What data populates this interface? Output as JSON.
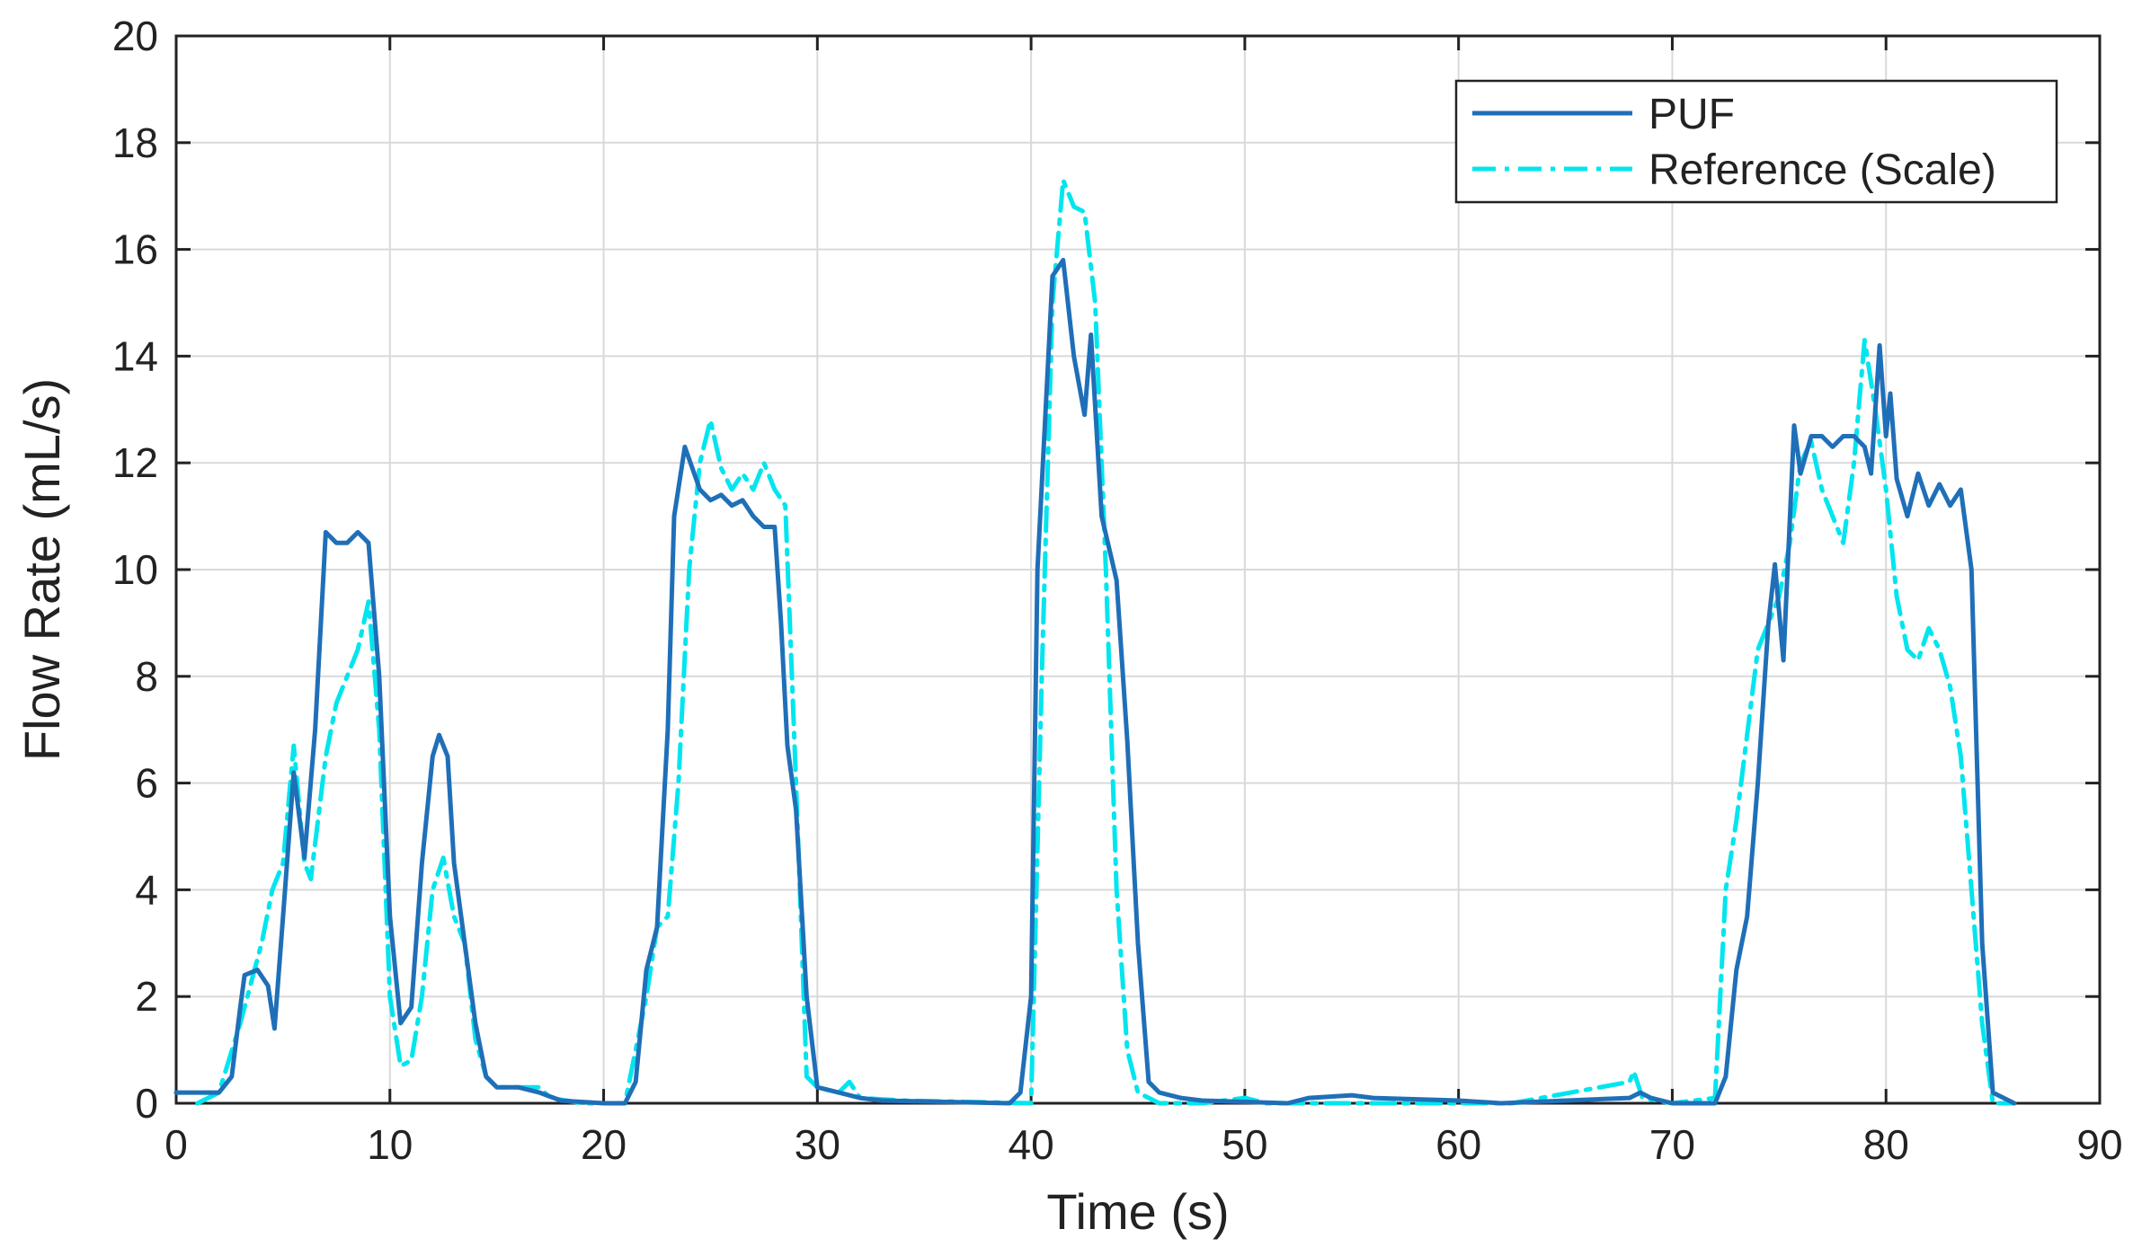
{
  "chart_data": {
    "type": "line",
    "title": "",
    "xlabel": "Time (s)",
    "ylabel": "Flow Rate (mL/s)",
    "xlim": [
      0,
      90
    ],
    "ylim": [
      0,
      20
    ],
    "xticks": [
      0,
      10,
      20,
      30,
      40,
      50,
      60,
      70,
      80,
      90
    ],
    "yticks": [
      0,
      2,
      4,
      6,
      8,
      10,
      12,
      14,
      16,
      18,
      20
    ],
    "xtick_labels": [
      "0",
      "10",
      "20",
      "30",
      "40",
      "50",
      "60",
      "70",
      "80",
      "90"
    ],
    "ytick_labels": [
      "0",
      "2",
      "4",
      "6",
      "8",
      "10",
      "12",
      "14",
      "16",
      "18",
      "20"
    ],
    "grid": true,
    "legend_position": "top-right",
    "series": [
      {
        "name": "PUF",
        "color": "#1f6fb8",
        "dash": "solid",
        "points": [
          [
            0,
            0.2
          ],
          [
            2,
            0.2
          ],
          [
            2.6,
            0.5
          ],
          [
            3,
            1.8
          ],
          [
            3.2,
            2.4
          ],
          [
            3.8,
            2.5
          ],
          [
            4.3,
            2.2
          ],
          [
            4.6,
            1.4
          ],
          [
            5,
            3.5
          ],
          [
            5.5,
            6.2
          ],
          [
            6,
            4.6
          ],
          [
            6.5,
            7
          ],
          [
            7,
            10.7
          ],
          [
            7.5,
            10.5
          ],
          [
            8,
            10.5
          ],
          [
            8.5,
            10.7
          ],
          [
            9,
            10.5
          ],
          [
            9.5,
            8
          ],
          [
            10,
            3.5
          ],
          [
            10.5,
            1.5
          ],
          [
            11,
            1.8
          ],
          [
            11.5,
            4.5
          ],
          [
            12,
            6.5
          ],
          [
            12.3,
            6.9
          ],
          [
            12.7,
            6.5
          ],
          [
            13,
            4.5
          ],
          [
            13.5,
            3
          ],
          [
            14,
            1.5
          ],
          [
            14.5,
            0.5
          ],
          [
            15,
            0.3
          ],
          [
            16,
            0.3
          ],
          [
            17,
            0.2
          ],
          [
            18,
            0.05
          ],
          [
            20,
            0
          ],
          [
            21,
            0
          ],
          [
            21.5,
            0.4
          ],
          [
            22,
            2.5
          ],
          [
            22.5,
            3.3
          ],
          [
            23,
            7
          ],
          [
            23.3,
            11
          ],
          [
            23.8,
            12.3
          ],
          [
            24.5,
            11.5
          ],
          [
            25,
            11.3
          ],
          [
            25.5,
            11.4
          ],
          [
            26,
            11.2
          ],
          [
            26.5,
            11.3
          ],
          [
            27,
            11
          ],
          [
            27.5,
            10.8
          ],
          [
            28,
            10.8
          ],
          [
            28.3,
            9
          ],
          [
            28.6,
            6.7
          ],
          [
            29,
            5.5
          ],
          [
            29.5,
            2
          ],
          [
            30,
            0.3
          ],
          [
            31,
            0.2
          ],
          [
            32,
            0.1
          ],
          [
            33,
            0.05
          ],
          [
            39,
            0
          ],
          [
            39.5,
            0.2
          ],
          [
            40,
            2
          ],
          [
            40.3,
            10
          ],
          [
            41,
            15.5
          ],
          [
            41.5,
            15.8
          ],
          [
            42,
            14
          ],
          [
            42.5,
            12.9
          ],
          [
            42.8,
            14.4
          ],
          [
            43.3,
            11
          ],
          [
            44,
            9.8
          ],
          [
            44.5,
            6.8
          ],
          [
            45,
            3
          ],
          [
            45.5,
            0.4
          ],
          [
            46,
            0.2
          ],
          [
            47,
            0.1
          ],
          [
            48,
            0.05
          ],
          [
            52,
            0
          ],
          [
            53,
            0.1
          ],
          [
            55,
            0.15
          ],
          [
            56,
            0.1
          ],
          [
            60,
            0.05
          ],
          [
            62,
            0
          ],
          [
            68,
            0.1
          ],
          [
            68.5,
            0.2
          ],
          [
            69,
            0.1
          ],
          [
            70,
            0
          ],
          [
            72,
            0
          ],
          [
            72.5,
            0.5
          ],
          [
            73,
            2.5
          ],
          [
            73.5,
            3.5
          ],
          [
            74,
            6
          ],
          [
            74.5,
            9
          ],
          [
            74.8,
            10.1
          ],
          [
            75.2,
            8.3
          ],
          [
            75.7,
            12.7
          ],
          [
            76,
            11.8
          ],
          [
            76.5,
            12.5
          ],
          [
            77,
            12.5
          ],
          [
            77.5,
            12.3
          ],
          [
            78,
            12.5
          ],
          [
            78.5,
            12.5
          ],
          [
            79,
            12.3
          ],
          [
            79.3,
            11.8
          ],
          [
            79.7,
            14.2
          ],
          [
            80,
            12.5
          ],
          [
            80.2,
            13.3
          ],
          [
            80.5,
            11.7
          ],
          [
            81,
            11
          ],
          [
            81.5,
            11.8
          ],
          [
            82,
            11.2
          ],
          [
            82.5,
            11.6
          ],
          [
            83,
            11.2
          ],
          [
            83.5,
            11.5
          ],
          [
            84,
            10
          ],
          [
            84.5,
            3
          ],
          [
            85,
            0.2
          ],
          [
            86,
            0
          ]
        ]
      },
      {
        "name": "Reference (Scale)",
        "color": "#00e5ee",
        "dash": "dashdot",
        "points": [
          [
            1,
            0
          ],
          [
            2,
            0.2
          ],
          [
            3,
            1.5
          ],
          [
            4,
            3
          ],
          [
            4.5,
            4
          ],
          [
            5,
            4.5
          ],
          [
            5.5,
            6.7
          ],
          [
            6,
            4.5
          ],
          [
            6.3,
            4.2
          ],
          [
            7,
            6.5
          ],
          [
            7.5,
            7.5
          ],
          [
            8,
            8
          ],
          [
            8.5,
            8.5
          ],
          [
            9,
            9.4
          ],
          [
            9.5,
            7
          ],
          [
            10,
            2
          ],
          [
            10.5,
            0.7
          ],
          [
            11,
            0.8
          ],
          [
            11.5,
            2
          ],
          [
            12,
            4
          ],
          [
            12.5,
            4.6
          ],
          [
            13,
            3.5
          ],
          [
            13.5,
            3
          ],
          [
            14,
            1.2
          ],
          [
            14.5,
            0.5
          ],
          [
            15,
            0.3
          ],
          [
            16,
            0.3
          ],
          [
            17,
            0.3
          ],
          [
            17.5,
            0.1
          ],
          [
            19,
            0
          ],
          [
            21,
            0
          ],
          [
            22,
            2
          ],
          [
            22.5,
            3.3
          ],
          [
            23,
            3.5
          ],
          [
            23.5,
            6
          ],
          [
            24,
            10
          ],
          [
            24.5,
            12
          ],
          [
            25,
            12.8
          ],
          [
            25.5,
            11.9
          ],
          [
            26,
            11.5
          ],
          [
            26.5,
            11.8
          ],
          [
            27,
            11.5
          ],
          [
            27.5,
            12
          ],
          [
            28,
            11.5
          ],
          [
            28.5,
            11.2
          ],
          [
            29,
            6
          ],
          [
            29.5,
            0.5
          ],
          [
            30,
            0.3
          ],
          [
            31,
            0.2
          ],
          [
            31.5,
            0.4
          ],
          [
            32,
            0.1
          ],
          [
            34,
            0.05
          ],
          [
            40,
            0
          ],
          [
            40.5,
            8
          ],
          [
            41,
            15
          ],
          [
            41.5,
            17.3
          ],
          [
            42,
            16.8
          ],
          [
            42.5,
            16.7
          ],
          [
            43,
            15
          ],
          [
            43.5,
            10
          ],
          [
            44,
            4
          ],
          [
            44.5,
            1
          ],
          [
            45,
            0.2
          ],
          [
            46,
            0
          ],
          [
            48,
            0
          ],
          [
            50,
            0.1
          ],
          [
            51,
            0
          ],
          [
            62.5,
            0
          ],
          [
            68,
            0.4
          ],
          [
            68.2,
            0.6
          ],
          [
            68.6,
            0.1
          ],
          [
            70,
            0
          ],
          [
            72,
            0.1
          ],
          [
            72.5,
            4
          ],
          [
            73,
            5.3
          ],
          [
            74,
            8.5
          ],
          [
            75,
            9.5
          ],
          [
            75.5,
            10.5
          ],
          [
            76,
            12
          ],
          [
            76.5,
            12.4
          ],
          [
            77,
            11.5
          ],
          [
            77.5,
            11
          ],
          [
            78,
            10.5
          ],
          [
            78.5,
            12
          ],
          [
            79,
            14.3
          ],
          [
            79.5,
            13
          ],
          [
            80,
            11.5
          ],
          [
            80.5,
            9.5
          ],
          [
            81,
            8.5
          ],
          [
            81.5,
            8.3
          ],
          [
            82,
            8.9
          ],
          [
            82.5,
            8.5
          ],
          [
            83,
            7.8
          ],
          [
            83.5,
            6.5
          ],
          [
            84,
            4
          ],
          [
            84.5,
            1.5
          ],
          [
            85,
            0
          ],
          [
            86,
            0
          ]
        ]
      }
    ]
  }
}
